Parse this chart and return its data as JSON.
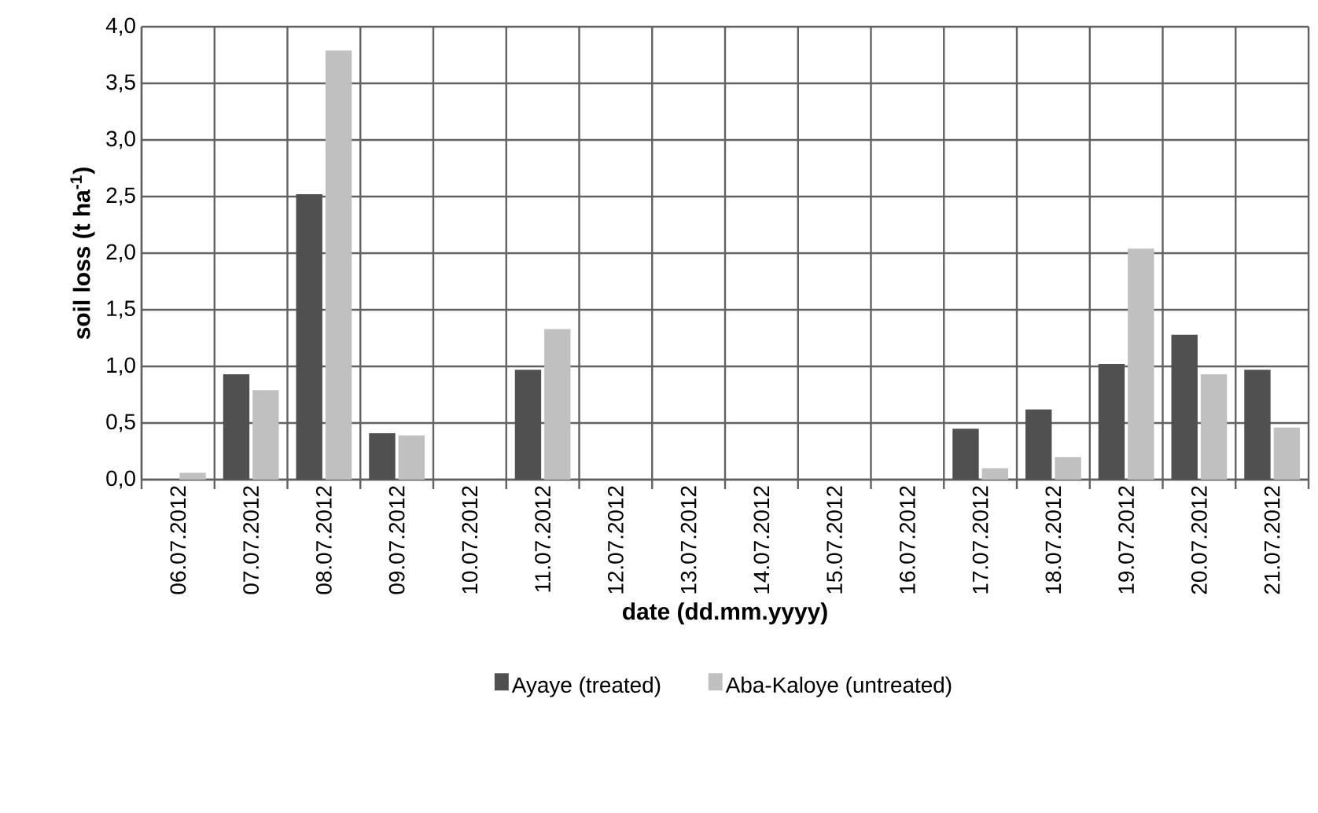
{
  "chart_data": {
    "type": "bar",
    "xlabel": "date (dd.mm.yyyy)",
    "ylabel": "soil loss (t ha$^{-1}$)",
    "categories": [
      "06.07.2012",
      "07.07.2012",
      "08.07.2012",
      "09.07.2012",
      "10.07.2012",
      "11.07.2012",
      "12.07.2012",
      "13.07.2012",
      "14.07.2012",
      "15.07.2012",
      "16.07.2012",
      "17.07.2012",
      "18.07.2012",
      "19.07.2012",
      "20.07.2012",
      "21.07.2012"
    ],
    "series": [
      {
        "name": "Ayaye (treated)",
        "color": "#505050",
        "values": [
          0,
          0.93,
          2.52,
          0.41,
          0,
          0.97,
          0,
          0,
          0,
          0,
          0,
          0.45,
          0.62,
          1.02,
          1.28,
          0.97
        ]
      },
      {
        "name": "Aba-Kaloye (untreated)",
        "color": "#c0c0c0",
        "values": [
          0.06,
          0.79,
          3.79,
          0.39,
          0,
          1.33,
          0,
          0,
          0,
          0,
          0,
          0.1,
          0.2,
          2.04,
          0.93,
          0.46
        ]
      }
    ],
    "ylim": [
      0,
      4
    ],
    "yticks": [
      {
        "value": 0,
        "label": "0,0"
      },
      {
        "value": 0.5,
        "label": "0,5"
      },
      {
        "value": 1,
        "label": "1,0"
      },
      {
        "value": 1.5,
        "label": "1,5"
      },
      {
        "value": 2,
        "label": "2,0"
      },
      {
        "value": 2.5,
        "label": "2,5"
      },
      {
        "value": 3,
        "label": "3,0"
      },
      {
        "value": 3.5,
        "label": "3,5"
      },
      {
        "value": 4,
        "label": "4,0"
      }
    ],
    "grid": true,
    "legend": "bottom"
  }
}
